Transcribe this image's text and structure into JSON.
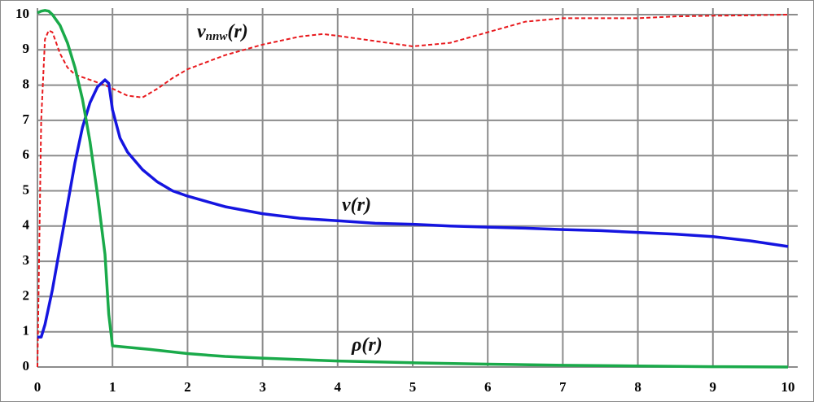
{
  "chart_data": {
    "type": "line",
    "xlim": [
      0,
      10
    ],
    "xticks": [
      0,
      1,
      2,
      3,
      4,
      5,
      6,
      7,
      8,
      9,
      10
    ],
    "ylim": [
      0,
      10
    ],
    "yticks": [
      0,
      1,
      2,
      3,
      4,
      5,
      6,
      7,
      8,
      9,
      10
    ],
    "grid": true,
    "series": [
      {
        "name": "v",
        "name_sub": "nnw",
        "name_tail": "(r)",
        "color": "#e8191d",
        "dashed": true,
        "x": [
          0,
          0.05,
          0.1,
          0.15,
          0.2,
          0.25,
          0.3,
          0.4,
          0.5,
          0.7,
          0.9,
          1.0,
          1.2,
          1.4,
          1.6,
          1.8,
          2,
          2.5,
          3,
          3.5,
          3.8,
          4,
          4.5,
          5,
          5.5,
          6,
          6.5,
          7,
          7.5,
          8,
          8.5,
          9,
          9.5,
          10
        ],
        "values": [
          0,
          7,
          9.3,
          9.55,
          9.5,
          9.2,
          8.9,
          8.5,
          8.3,
          8.15,
          8.0,
          7.9,
          7.7,
          7.65,
          7.9,
          8.2,
          8.45,
          8.85,
          9.15,
          9.38,
          9.45,
          9.4,
          9.25,
          9.1,
          9.2,
          9.5,
          9.8,
          9.9,
          9.9,
          9.9,
          9.95,
          9.97,
          9.98,
          10.0
        ]
      },
      {
        "name": "v(r)",
        "color": "#1515e0",
        "dashed": false,
        "x": [
          0,
          0.05,
          0.1,
          0.2,
          0.3,
          0.4,
          0.5,
          0.6,
          0.7,
          0.8,
          0.9,
          0.95,
          1.0,
          1.1,
          1.2,
          1.4,
          1.6,
          1.8,
          2,
          2.5,
          3,
          3.5,
          4,
          4.5,
          5,
          5.5,
          6,
          6.5,
          7,
          7.5,
          8,
          8.5,
          9,
          9.5,
          10
        ],
        "values": [
          0.85,
          0.85,
          1.2,
          2.2,
          3.4,
          4.6,
          5.8,
          6.8,
          7.5,
          7.95,
          8.15,
          8.05,
          7.3,
          6.5,
          6.1,
          5.6,
          5.25,
          5.0,
          4.85,
          4.55,
          4.35,
          4.22,
          4.15,
          4.08,
          4.05,
          4.0,
          3.97,
          3.94,
          3.9,
          3.87,
          3.82,
          3.77,
          3.7,
          3.58,
          3.42
        ]
      },
      {
        "name": "ρ(r)",
        "color": "#1aaa4a",
        "dashed": false,
        "x": [
          0,
          0.05,
          0.1,
          0.15,
          0.2,
          0.3,
          0.4,
          0.5,
          0.6,
          0.7,
          0.8,
          0.9,
          0.95,
          1.0,
          1.5,
          2,
          2.5,
          3,
          4,
          5,
          6,
          7,
          8,
          9,
          10
        ],
        "values": [
          10.05,
          10.1,
          10.12,
          10.1,
          10.0,
          9.7,
          9.2,
          8.5,
          7.6,
          6.4,
          4.9,
          3.2,
          1.5,
          0.6,
          0.5,
          0.38,
          0.3,
          0.25,
          0.17,
          0.12,
          0.08,
          0.05,
          0.03,
          0.01,
          0.0
        ]
      }
    ]
  }
}
